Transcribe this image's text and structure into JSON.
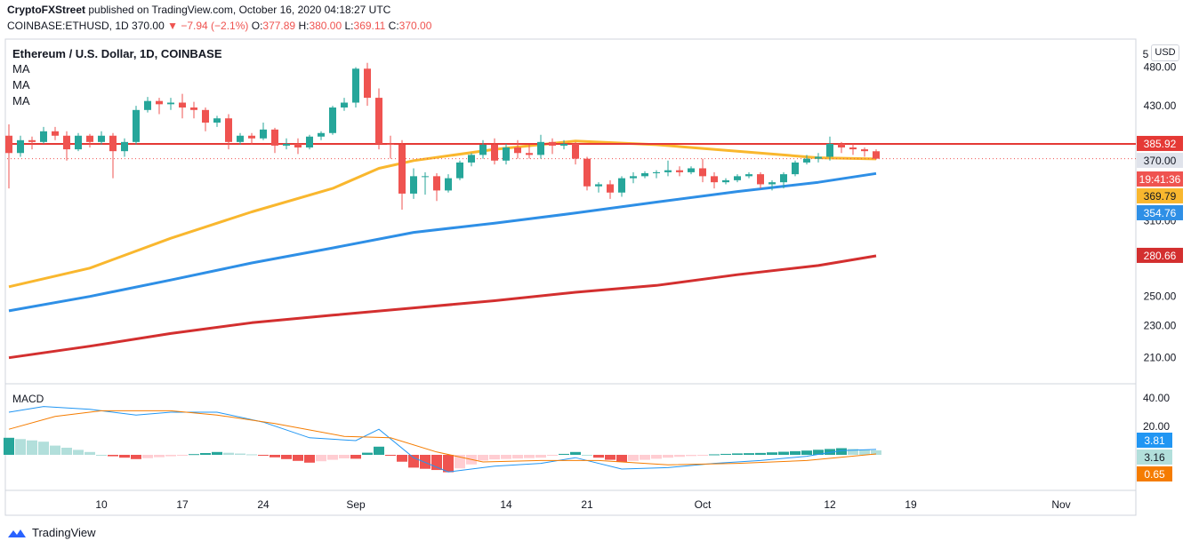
{
  "header": {
    "publisher": "CryptoFXStreet",
    "published_text": " published on TradingView.com, October 16, 2020 04:18:27 UTC",
    "symbol": "COINBASE:ETHUSD, 1D",
    "last": "370.00",
    "change": "−7.94 (−2.1%)",
    "o_label": "O:",
    "o": "377.89",
    "h_label": "H:",
    "h": "380.00",
    "l_label": "L:",
    "l": "369.11",
    "c_label": "C:",
    "c": "370.00"
  },
  "pane": {
    "title": "Ethereum / U.S. Dollar, 1D, COINBASE",
    "ma_labels": [
      "MA",
      "MA",
      "MA"
    ],
    "macd_label": "MACD",
    "currency": "USD"
  },
  "price_axis": {
    "ticks": [
      "480.00",
      "430.00",
      "310.00",
      "250.00",
      "230.00",
      "210.00"
    ],
    "top_partial": "5",
    "badges": [
      {
        "text": "385.92",
        "color": "#e53935"
      },
      {
        "text": "370.00",
        "color": "#e0e3eb",
        "textcolor": "#131722"
      },
      {
        "text": "19:41:36",
        "color": "#ef5350"
      },
      {
        "text": "369.79",
        "color": "#f9b72e",
        "textcolor": "#131722"
      },
      {
        "text": "354.76",
        "color": "#2e8fe6"
      },
      {
        "text": "280.66",
        "color": "#d32f2f"
      }
    ]
  },
  "macd_axis": {
    "ticks": [
      "40.00",
      "20.00"
    ],
    "badges": [
      {
        "text": "3.81",
        "color": "#2196f3"
      },
      {
        "text": "3.16",
        "color": "#b2dfdb",
        "textcolor": "#131722"
      },
      {
        "text": "0.65",
        "color": "#f57c00"
      }
    ]
  },
  "time_axis": [
    "10",
    "17",
    "24",
    "Sep",
    "14",
    "21",
    "Oct",
    "12",
    "19",
    "Nov"
  ],
  "footer": {
    "brand": "TradingView"
  },
  "colors": {
    "up": "#26a69a",
    "down": "#ef5350",
    "ma50": "#f9b72e",
    "ma100": "#2e8fe6",
    "ma200": "#d32f2f",
    "resistance": "#e53935"
  },
  "chart_data": {
    "type": "candlestick",
    "title": "Ethereum / U.S. Dollar, 1D, COINBASE",
    "x_range": [
      "2020-08-02",
      "2020-11-04"
    ],
    "y_log_scale": true,
    "ylim": [
      195,
      520
    ],
    "candles": [
      {
        "d": "2020-08-02",
        "o": 395,
        "h": 408,
        "l": 340,
        "c": 376
      },
      {
        "d": "2020-08-03",
        "o": 376,
        "h": 395,
        "l": 372,
        "c": 390
      },
      {
        "d": "2020-08-04",
        "o": 390,
        "h": 394,
        "l": 380,
        "c": 388
      },
      {
        "d": "2020-08-05",
        "o": 388,
        "h": 405,
        "l": 386,
        "c": 400
      },
      {
        "d": "2020-08-06",
        "o": 400,
        "h": 405,
        "l": 390,
        "c": 395
      },
      {
        "d": "2020-08-07",
        "o": 395,
        "h": 400,
        "l": 368,
        "c": 380
      },
      {
        "d": "2020-08-08",
        "o": 380,
        "h": 398,
        "l": 378,
        "c": 395
      },
      {
        "d": "2020-08-09",
        "o": 395,
        "h": 397,
        "l": 382,
        "c": 388
      },
      {
        "d": "2020-08-10",
        "o": 388,
        "h": 400,
        "l": 385,
        "c": 395
      },
      {
        "d": "2020-08-11",
        "o": 395,
        "h": 398,
        "l": 350,
        "c": 378
      },
      {
        "d": "2020-08-12",
        "o": 378,
        "h": 392,
        "l": 372,
        "c": 388
      },
      {
        "d": "2020-08-13",
        "o": 388,
        "h": 430,
        "l": 385,
        "c": 425
      },
      {
        "d": "2020-08-14",
        "o": 425,
        "h": 441,
        "l": 422,
        "c": 436
      },
      {
        "d": "2020-08-15",
        "o": 436,
        "h": 440,
        "l": 420,
        "c": 432
      },
      {
        "d": "2020-08-16",
        "o": 432,
        "h": 440,
        "l": 425,
        "c": 434
      },
      {
        "d": "2020-08-17",
        "o": 434,
        "h": 445,
        "l": 415,
        "c": 428
      },
      {
        "d": "2020-08-18",
        "o": 428,
        "h": 435,
        "l": 415,
        "c": 425
      },
      {
        "d": "2020-08-19",
        "o": 425,
        "h": 428,
        "l": 400,
        "c": 410
      },
      {
        "d": "2020-08-20",
        "o": 410,
        "h": 418,
        "l": 405,
        "c": 415
      },
      {
        "d": "2020-08-21",
        "o": 415,
        "h": 420,
        "l": 380,
        "c": 388
      },
      {
        "d": "2020-08-22",
        "o": 388,
        "h": 398,
        "l": 385,
        "c": 395
      },
      {
        "d": "2020-08-23",
        "o": 395,
        "h": 398,
        "l": 385,
        "c": 392
      },
      {
        "d": "2020-08-24",
        "o": 392,
        "h": 410,
        "l": 390,
        "c": 402
      },
      {
        "d": "2020-08-25",
        "o": 402,
        "h": 404,
        "l": 376,
        "c": 384
      },
      {
        "d": "2020-08-26",
        "o": 384,
        "h": 392,
        "l": 380,
        "c": 386
      },
      {
        "d": "2020-08-27",
        "o": 386,
        "h": 392,
        "l": 375,
        "c": 382
      },
      {
        "d": "2020-08-28",
        "o": 382,
        "h": 396,
        "l": 380,
        "c": 394
      },
      {
        "d": "2020-08-29",
        "o": 394,
        "h": 400,
        "l": 390,
        "c": 398
      },
      {
        "d": "2020-08-30",
        "o": 398,
        "h": 430,
        "l": 396,
        "c": 428
      },
      {
        "d": "2020-08-31",
        "o": 428,
        "h": 440,
        "l": 424,
        "c": 434
      },
      {
        "d": "2020-09-01",
        "o": 434,
        "h": 480,
        "l": 428,
        "c": 478
      },
      {
        "d": "2020-09-02",
        "o": 478,
        "h": 486,
        "l": 430,
        "c": 440
      },
      {
        "d": "2020-09-03",
        "o": 440,
        "h": 452,
        "l": 380,
        "c": 386
      },
      {
        "d": "2020-09-04",
        "o": 386,
        "h": 395,
        "l": 370,
        "c": 385
      },
      {
        "d": "2020-09-05",
        "o": 385,
        "h": 390,
        "l": 320,
        "c": 335
      },
      {
        "d": "2020-09-06",
        "o": 335,
        "h": 360,
        "l": 330,
        "c": 352
      },
      {
        "d": "2020-09-07",
        "o": 352,
        "h": 356,
        "l": 334,
        "c": 352
      },
      {
        "d": "2020-09-08",
        "o": 352,
        "h": 355,
        "l": 328,
        "c": 338
      },
      {
        "d": "2020-09-09",
        "o": 338,
        "h": 354,
        "l": 336,
        "c": 350
      },
      {
        "d": "2020-09-10",
        "o": 350,
        "h": 368,
        "l": 348,
        "c": 366
      },
      {
        "d": "2020-09-11",
        "o": 366,
        "h": 376,
        "l": 362,
        "c": 374
      },
      {
        "d": "2020-09-12",
        "o": 374,
        "h": 390,
        "l": 370,
        "c": 385
      },
      {
        "d": "2020-09-13",
        "o": 385,
        "h": 392,
        "l": 364,
        "c": 368
      },
      {
        "d": "2020-09-14",
        "o": 368,
        "h": 386,
        "l": 364,
        "c": 382
      },
      {
        "d": "2020-09-15",
        "o": 382,
        "h": 390,
        "l": 370,
        "c": 376
      },
      {
        "d": "2020-09-16",
        "o": 376,
        "h": 385,
        "l": 370,
        "c": 374
      },
      {
        "d": "2020-09-17",
        "o": 374,
        "h": 396,
        "l": 370,
        "c": 388
      },
      {
        "d": "2020-09-18",
        "o": 388,
        "h": 392,
        "l": 375,
        "c": 384
      },
      {
        "d": "2020-09-19",
        "o": 384,
        "h": 390,
        "l": 380,
        "c": 386
      },
      {
        "d": "2020-09-20",
        "o": 386,
        "h": 388,
        "l": 364,
        "c": 370
      },
      {
        "d": "2020-09-21",
        "o": 370,
        "h": 372,
        "l": 338,
        "c": 342
      },
      {
        "d": "2020-09-22",
        "o": 342,
        "h": 346,
        "l": 336,
        "c": 344
      },
      {
        "d": "2020-09-23",
        "o": 344,
        "h": 348,
        "l": 330,
        "c": 336
      },
      {
        "d": "2020-09-24",
        "o": 336,
        "h": 352,
        "l": 332,
        "c": 350
      },
      {
        "d": "2020-09-25",
        "o": 350,
        "h": 356,
        "l": 345,
        "c": 352
      },
      {
        "d": "2020-09-26",
        "o": 352,
        "h": 357,
        "l": 350,
        "c": 355
      },
      {
        "d": "2020-09-27",
        "o": 355,
        "h": 358,
        "l": 350,
        "c": 356
      },
      {
        "d": "2020-09-28",
        "o": 356,
        "h": 368,
        "l": 352,
        "c": 358
      },
      {
        "d": "2020-09-29",
        "o": 358,
        "h": 362,
        "l": 352,
        "c": 356
      },
      {
        "d": "2020-09-30",
        "o": 356,
        "h": 362,
        "l": 354,
        "c": 360
      },
      {
        "d": "2020-10-01",
        "o": 360,
        "h": 370,
        "l": 346,
        "c": 352
      },
      {
        "d": "2020-10-02",
        "o": 352,
        "h": 356,
        "l": 340,
        "c": 346
      },
      {
        "d": "2020-10-03",
        "o": 346,
        "h": 350,
        "l": 344,
        "c": 348
      },
      {
        "d": "2020-10-04",
        "o": 348,
        "h": 354,
        "l": 346,
        "c": 352
      },
      {
        "d": "2020-10-05",
        "o": 352,
        "h": 356,
        "l": 350,
        "c": 354
      },
      {
        "d": "2020-10-06",
        "o": 354,
        "h": 356,
        "l": 340,
        "c": 344
      },
      {
        "d": "2020-10-07",
        "o": 344,
        "h": 348,
        "l": 338,
        "c": 346
      },
      {
        "d": "2020-10-08",
        "o": 346,
        "h": 356,
        "l": 340,
        "c": 354
      },
      {
        "d": "2020-10-09",
        "o": 354,
        "h": 368,
        "l": 352,
        "c": 366
      },
      {
        "d": "2020-10-10",
        "o": 366,
        "h": 374,
        "l": 364,
        "c": 370
      },
      {
        "d": "2020-10-11",
        "o": 370,
        "h": 376,
        "l": 366,
        "c": 372
      },
      {
        "d": "2020-10-12",
        "o": 372,
        "h": 394,
        "l": 368,
        "c": 386
      },
      {
        "d": "2020-10-13",
        "o": 386,
        "h": 388,
        "l": 376,
        "c": 382
      },
      {
        "d": "2020-10-14",
        "o": 382,
        "h": 386,
        "l": 374,
        "c": 380
      },
      {
        "d": "2020-10-15",
        "o": 380,
        "h": 382,
        "l": 372,
        "c": 378
      },
      {
        "d": "2020-10-16",
        "o": 377.89,
        "h": 380.0,
        "l": 369.11,
        "c": 370.0
      }
    ],
    "ma_series": [
      {
        "color": "#f9b72e",
        "points": [
          [
            "2020-08-02",
            257
          ],
          [
            "2020-08-09",
            271
          ],
          [
            "2020-08-16",
            295
          ],
          [
            "2020-08-23",
            318
          ],
          [
            "2020-08-30",
            340
          ],
          [
            "2020-09-03",
            360
          ],
          [
            "2020-09-06",
            368
          ],
          [
            "2020-09-13",
            380
          ],
          [
            "2020-09-20",
            389
          ],
          [
            "2020-09-27",
            385
          ],
          [
            "2020-10-04",
            378
          ],
          [
            "2020-10-11",
            371
          ],
          [
            "2020-10-16",
            369.79
          ]
        ]
      },
      {
        "color": "#2e8fe6",
        "points": [
          [
            "2020-08-02",
            240
          ],
          [
            "2020-08-09",
            250
          ],
          [
            "2020-08-16",
            262
          ],
          [
            "2020-08-23",
            275
          ],
          [
            "2020-08-30",
            287
          ],
          [
            "2020-09-06",
            300
          ],
          [
            "2020-09-13",
            308
          ],
          [
            "2020-09-20",
            317
          ],
          [
            "2020-09-27",
            327
          ],
          [
            "2020-10-04",
            337
          ],
          [
            "2020-10-11",
            346
          ],
          [
            "2020-10-16",
            354.76
          ]
        ]
      },
      {
        "color": "#d32f2f",
        "points": [
          [
            "2020-08-02",
            210
          ],
          [
            "2020-08-09",
            217
          ],
          [
            "2020-08-16",
            225
          ],
          [
            "2020-08-23",
            232
          ],
          [
            "2020-08-30",
            237
          ],
          [
            "2020-09-06",
            242
          ],
          [
            "2020-09-13",
            247
          ],
          [
            "2020-09-20",
            253
          ],
          [
            "2020-09-27",
            258
          ],
          [
            "2020-10-04",
            266
          ],
          [
            "2020-10-11",
            273
          ],
          [
            "2020-10-16",
            280.66
          ]
        ]
      }
    ],
    "resistance": 385.92,
    "macd": {
      "ylim": [
        -25,
        50
      ],
      "macd_line": [
        [
          "2020-08-02",
          30
        ],
        [
          "2020-08-05",
          34
        ],
        [
          "2020-08-09",
          32
        ],
        [
          "2020-08-13",
          28
        ],
        [
          "2020-08-16",
          30
        ],
        [
          "2020-08-20",
          30
        ],
        [
          "2020-08-24",
          23
        ],
        [
          "2020-08-28",
          12
        ],
        [
          "2020-09-01",
          10
        ],
        [
          "2020-09-03",
          18
        ],
        [
          "2020-09-06",
          -2
        ],
        [
          "2020-09-09",
          -12
        ],
        [
          "2020-09-13",
          -8
        ],
        [
          "2020-09-17",
          -6
        ],
        [
          "2020-09-20",
          -2
        ],
        [
          "2020-09-24",
          -10
        ],
        [
          "2020-09-28",
          -9
        ],
        [
          "2020-10-02",
          -6
        ],
        [
          "2020-10-06",
          -4
        ],
        [
          "2020-10-10",
          -1
        ],
        [
          "2020-10-13",
          3
        ],
        [
          "2020-10-16",
          3.81
        ]
      ],
      "signal_line": [
        [
          "2020-08-02",
          18
        ],
        [
          "2020-08-06",
          27
        ],
        [
          "2020-08-10",
          31
        ],
        [
          "2020-08-16",
          31
        ],
        [
          "2020-08-20",
          28
        ],
        [
          "2020-08-25",
          22
        ],
        [
          "2020-08-31",
          13
        ],
        [
          "2020-09-04",
          12
        ],
        [
          "2020-09-08",
          2
        ],
        [
          "2020-09-12",
          -5
        ],
        [
          "2020-09-17",
          -4
        ],
        [
          "2020-09-22",
          -4
        ],
        [
          "2020-09-28",
          -7
        ],
        [
          "2020-10-04",
          -6
        ],
        [
          "2020-10-10",
          -4
        ],
        [
          "2020-10-16",
          0.65
        ]
      ],
      "histogram_last": 3.16
    }
  }
}
